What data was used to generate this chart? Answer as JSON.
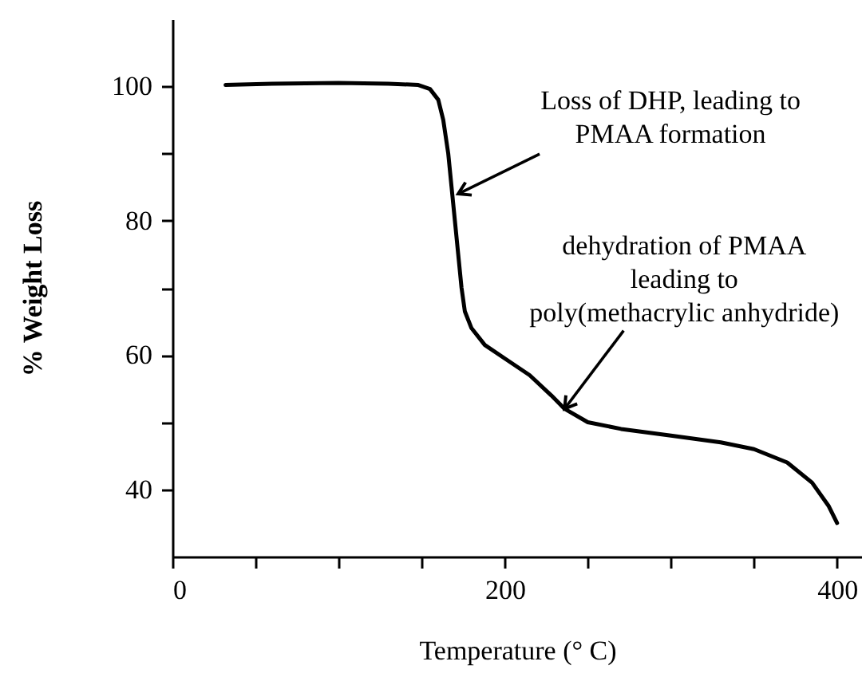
{
  "chart_data": {
    "type": "line",
    "xlabel": "Temperature (° C)",
    "ylabel": "% Weight Loss",
    "x": [
      32,
      60,
      100,
      130,
      148,
      155,
      160,
      163,
      166,
      168,
      170,
      172,
      174,
      176,
      180,
      188,
      200,
      215,
      228,
      236,
      250,
      270,
      300,
      330,
      350,
      370,
      385,
      395,
      400
    ],
    "series": [
      {
        "color": "#000000",
        "values": [
          100.2,
          100.4,
          100.5,
          100.4,
          100.2,
          99.6,
          98,
          95,
          90,
          85,
          80,
          75,
          70,
          66.5,
          64,
          61.5,
          59.5,
          57,
          54,
          52,
          50,
          49,
          48,
          47,
          46,
          44,
          41,
          37.5,
          35
        ]
      }
    ],
    "xlim": [
      0,
      415
    ],
    "ylim": [
      30,
      110
    ],
    "xticks": [
      0,
      {
        "value": 50,
        "label": null
      },
      {
        "value": 100,
        "label": null
      },
      {
        "value": 150,
        "label": null
      },
      200,
      {
        "value": 250,
        "label": null
      },
      {
        "value": 300,
        "label": null
      },
      {
        "value": 350,
        "label": null
      },
      400
    ],
    "yticks": [
      40,
      {
        "value": 50,
        "label": null
      },
      60,
      {
        "value": 70,
        "label": null
      },
      80,
      {
        "value": 90,
        "label": null
      },
      100
    ],
    "annotations": [
      {
        "text": "Loss of DHP, leading to\nPMAA formation",
        "x": 172,
        "y": 84
      },
      {
        "text": "dehydration of PMAA\nleading to\npoly(methacrylic anhydride)",
        "x": 236,
        "y": 52
      }
    ],
    "grid": false,
    "marker": "none",
    "line_style": "solid"
  }
}
